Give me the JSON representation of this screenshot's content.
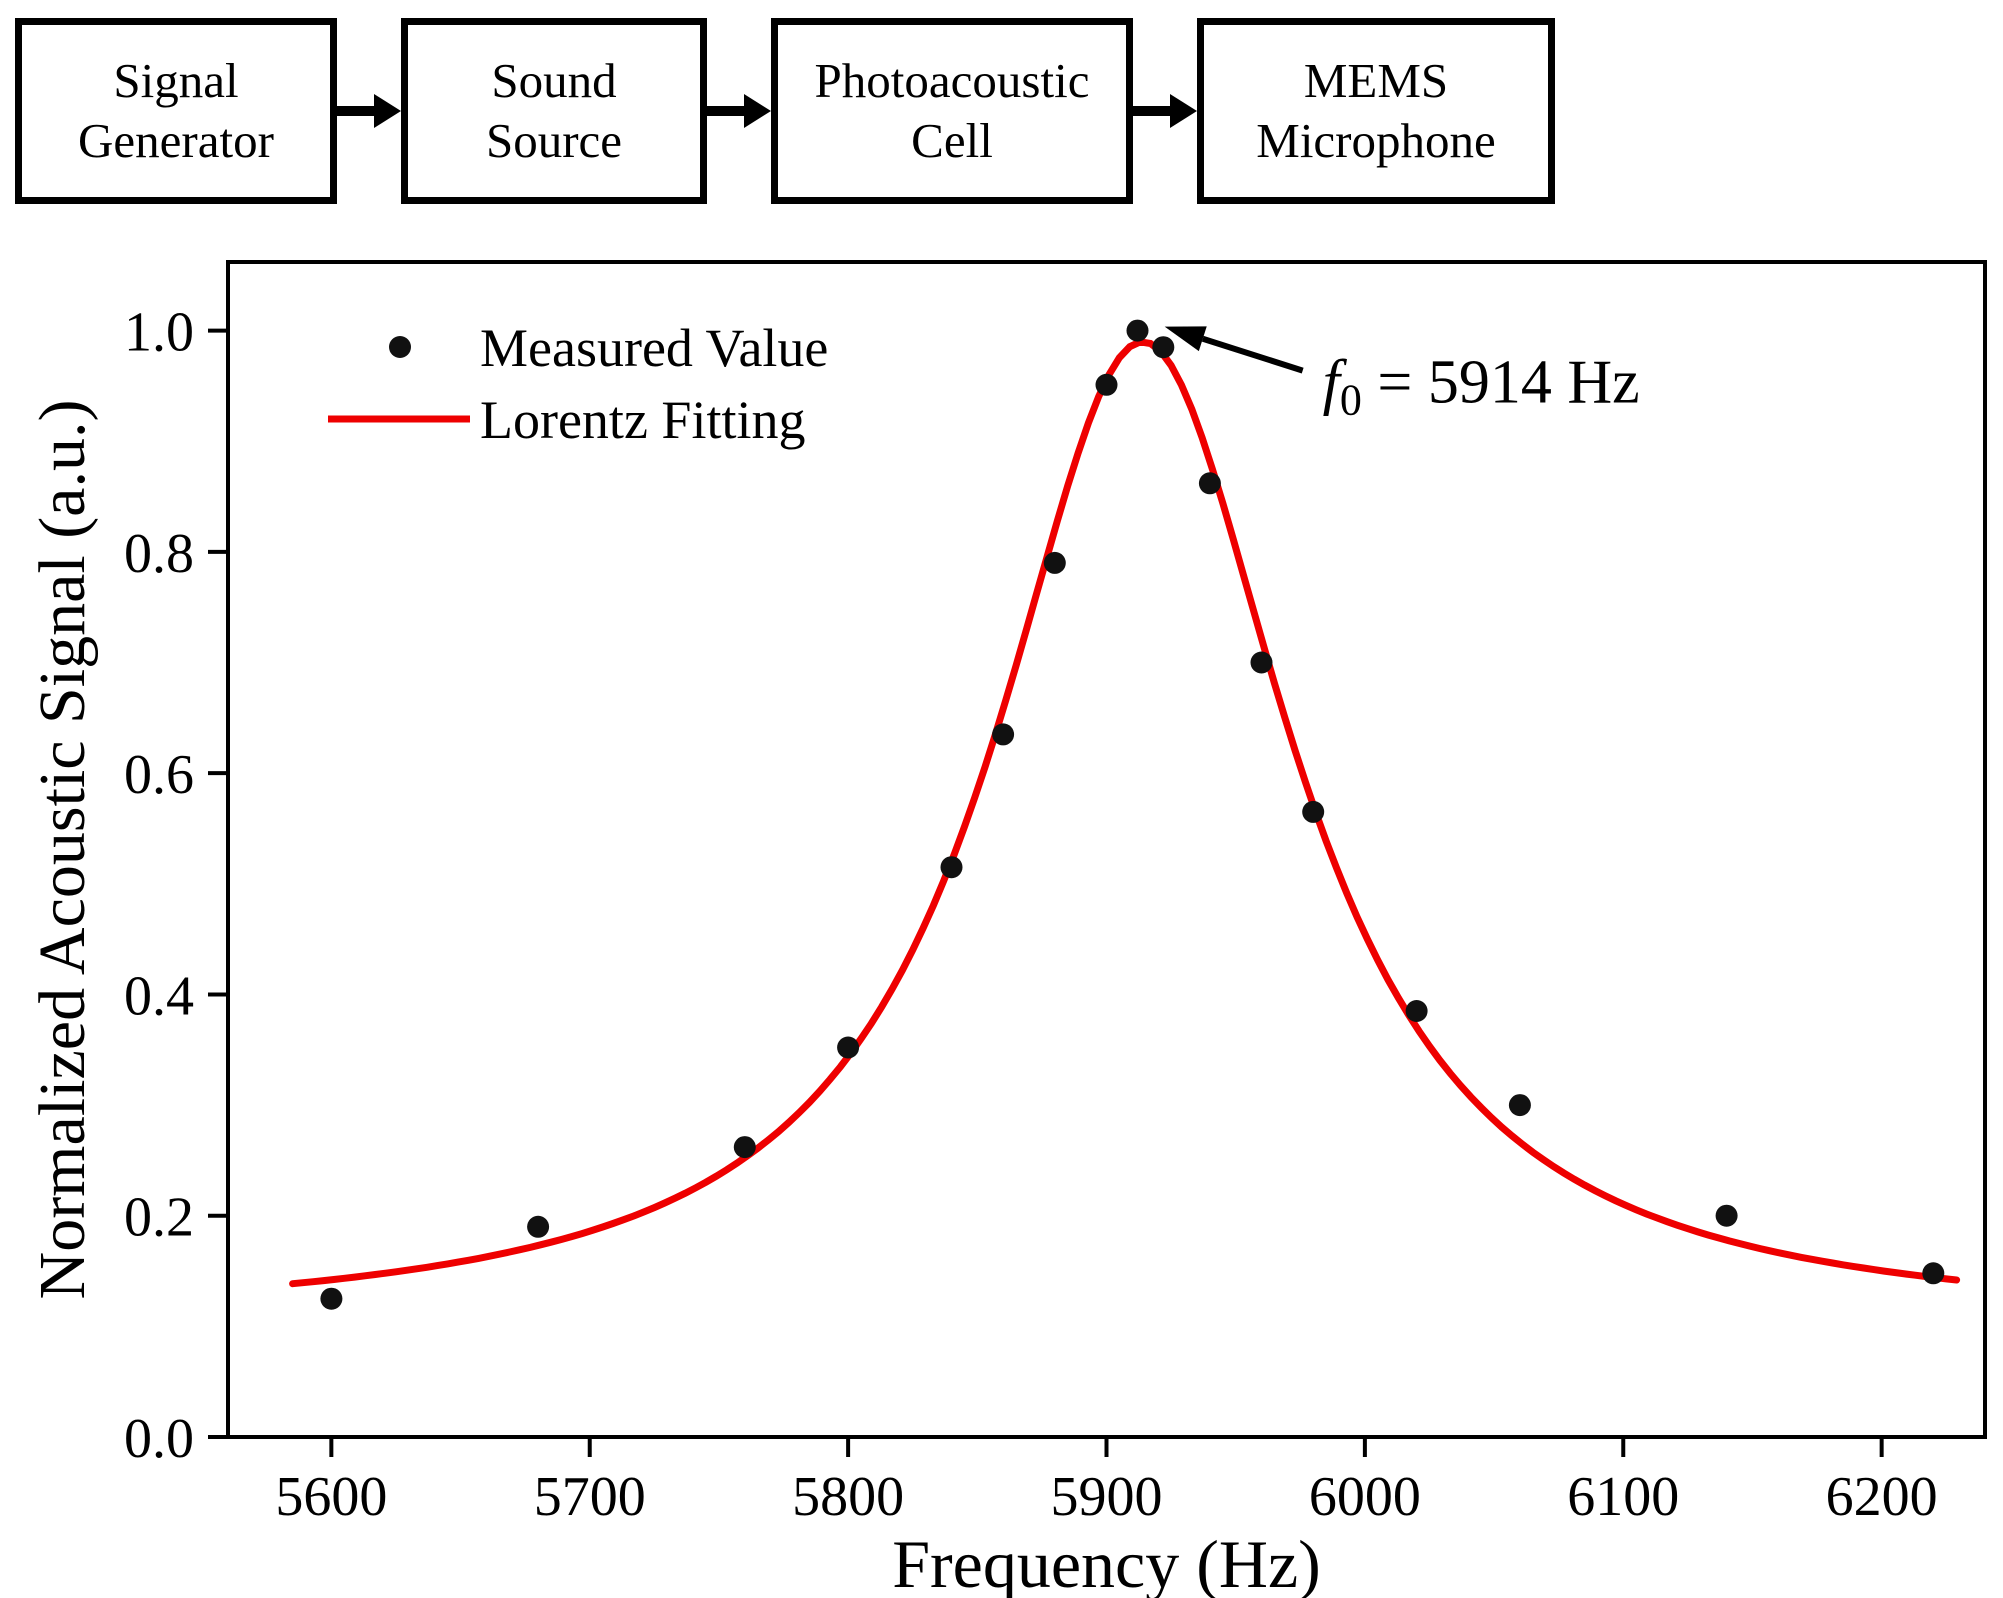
{
  "diagram": {
    "boxes": [
      {
        "line1": "Signal",
        "line2": "Generator"
      },
      {
        "line1": "Sound",
        "line2": "Source"
      },
      {
        "line1": "Photoacoustic",
        "line2": "Cell"
      },
      {
        "line1": "MEMS",
        "line2": "Microphone"
      }
    ]
  },
  "chart_data": {
    "type": "scatter",
    "title": "",
    "xlabel": "Frequency (Hz)",
    "ylabel": "Normalized Acoustic Signal (a.u.)",
    "xlim": [
      5560,
      6240
    ],
    "ylim": [
      0,
      1.062
    ],
    "x_ticks": [
      5600,
      5700,
      5800,
      5900,
      6000,
      6100,
      6200
    ],
    "y_ticks": [
      0.0,
      0.2,
      0.4,
      0.6,
      0.8,
      1.0
    ],
    "grid": false,
    "legend_position": "top-left",
    "series": [
      {
        "name": "Measured Value",
        "type": "scatter",
        "color": "#111111",
        "points": [
          [
            5600,
            0.125
          ],
          [
            5680,
            0.19
          ],
          [
            5760,
            0.262
          ],
          [
            5800,
            0.352
          ],
          [
            5840,
            0.515
          ],
          [
            5860,
            0.635
          ],
          [
            5880,
            0.79
          ],
          [
            5900,
            0.951
          ],
          [
            5912,
            1.0
          ],
          [
            5922,
            0.985
          ],
          [
            5940,
            0.862
          ],
          [
            5960,
            0.7
          ],
          [
            5980,
            0.565
          ],
          [
            6020,
            0.385
          ],
          [
            6060,
            0.3
          ],
          [
            6140,
            0.2
          ],
          [
            6220,
            0.148
          ]
        ]
      },
      {
        "name": "Lorentz Fitting",
        "type": "line",
        "color": "#ee0000",
        "fit_model": "lorentzian",
        "fit_params": {
          "x0": 5914,
          "hwhm": 70,
          "amplitude": 0.89,
          "baseline": 0.1
        },
        "x_range": [
          5585,
          6232
        ]
      }
    ],
    "annotation": {
      "text_italic": "f",
      "text_sub": "0",
      "text_rest": " = 5914 Hz",
      "target": {
        "x": 5914,
        "y": 1.0
      }
    }
  }
}
